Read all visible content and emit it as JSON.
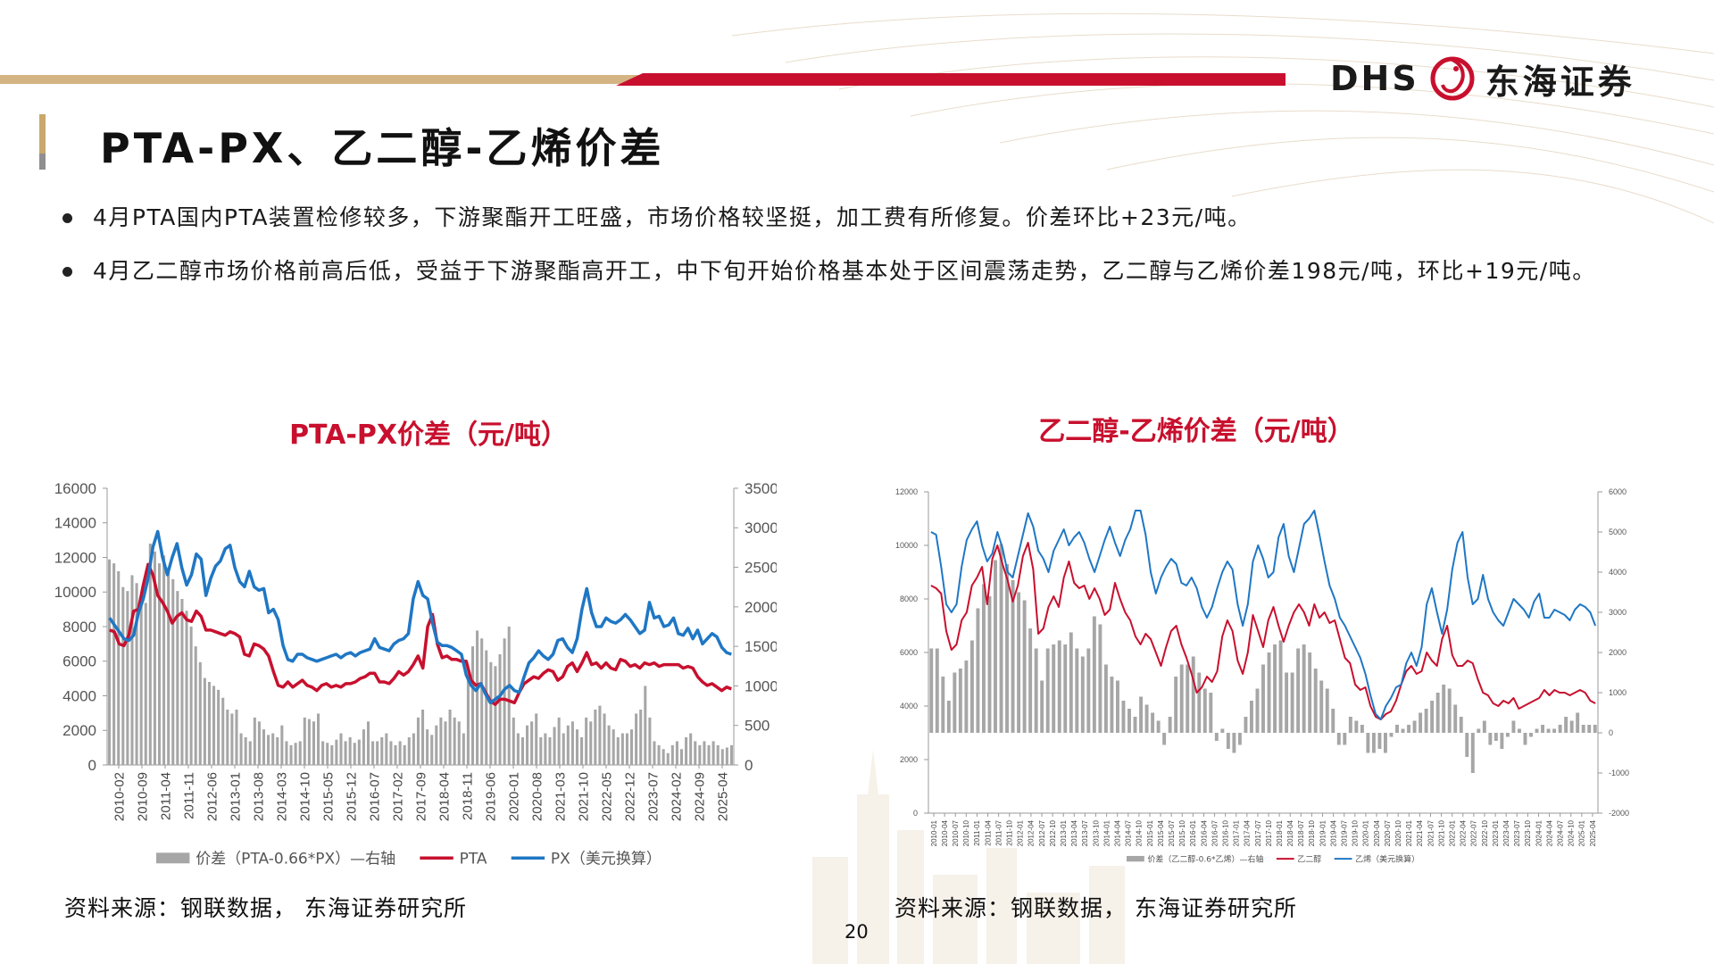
{
  "header": {
    "logo_latin": "DHS",
    "logo_chinese": "东海证券",
    "logo_icon": "dragon-icon",
    "page_title": "PTA-PX、乙二醇-乙烯价差"
  },
  "bullets": [
    "4月PTA国内PTA装置检修较多，下游聚酯开工旺盛，市场价格较坚挺，加工费有所修复。价差环比+23元/吨。",
    "4月乙二醇市场价格前高后低，受益于下游聚酯高开工，中下旬开始价格基本处于区间震荡走势，乙二醇与乙烯价差198元/吨，环比+19元/吨。"
  ],
  "colors": {
    "accent_red": "#c8102e",
    "accent_blue": "#1f77c4",
    "bar_gray": "#a6a6a6",
    "gold": "#d4b483"
  },
  "footer": {
    "source_left": "资料来源：钢联数据， 东海证券研究所",
    "source_right": "资料来源：钢联数据， 东海证券研究所",
    "page_number": "20"
  },
  "chart_data": [
    {
      "type": "line",
      "title": "PTA-PX价差（元/吨）",
      "x_ticks": [
        "2010-02",
        "2010-09",
        "2011-04",
        "2011-11",
        "2012-06",
        "2013-01",
        "2013-08",
        "2014-03",
        "2014-10",
        "2015-05",
        "2015-12",
        "2016-07",
        "2017-02",
        "2017-09",
        "2018-04",
        "2018-11",
        "2019-06",
        "2020-01",
        "2020-08",
        "2021-03",
        "2021-10",
        "2022-05",
        "2022-12",
        "2023-07",
        "2024-02",
        "2024-09",
        "2025-04"
      ],
      "y_left": {
        "min": 0,
        "max": 16000,
        "ticks": [
          "0",
          "2000",
          "4000",
          "6000",
          "8000",
          "10000",
          "12000",
          "14000",
          "16000"
        ]
      },
      "y_right": {
        "min": 0,
        "max": 3500,
        "ticks": [
          "0",
          "500",
          "1000",
          "1500",
          "2000",
          "2500",
          "3000",
          "3500"
        ]
      },
      "legend": [
        "价差（PTA-0.66*PX）—右轴",
        "PTA",
        "PX（美元换算）"
      ],
      "series": [
        {
          "name": "价差（PTA-0.66*PX）—右轴",
          "axis": "right",
          "kind": "bar",
          "values": [
            2600,
            2550,
            2450,
            2250,
            2200,
            2400,
            2300,
            2100,
            2050,
            2800,
            2700,
            2550,
            2650,
            2500,
            2350,
            2200,
            2100,
            1950,
            1750,
            1500,
            1300,
            1100,
            1050,
            1000,
            950,
            850,
            700,
            650,
            700,
            400,
            350,
            300,
            600,
            550,
            450,
            380,
            400,
            350,
            500,
            300,
            250,
            280,
            300,
            600,
            580,
            550,
            650,
            300,
            280,
            250,
            320,
            400,
            300,
            350,
            280,
            320,
            450,
            550,
            300,
            300,
            350,
            400,
            300,
            250,
            300,
            250,
            350,
            400,
            600,
            700,
            450,
            380,
            500,
            600,
            550,
            700,
            600,
            550,
            400,
            1100,
            1500,
            1700,
            1600,
            1450,
            1300,
            1250,
            1400,
            1600,
            1750,
            600,
            400,
            350,
            500,
            550,
            650,
            350,
            400,
            350,
            480,
            600,
            400,
            500,
            550,
            450,
            350,
            600,
            550,
            700,
            750,
            650,
            500,
            450,
            350,
            400,
            400,
            450,
            650,
            700,
            1000,
            600,
            300,
            250,
            200,
            150,
            250,
            300,
            200,
            350,
            400,
            300,
            250,
            300,
            250,
            300,
            250,
            200,
            220,
            250
          ]
        },
        {
          "name": "PTA",
          "axis": "left",
          "kind": "line",
          "values": [
            7800,
            7700,
            7000,
            6900,
            7500,
            8900,
            9000,
            10400,
            11600,
            11000,
            9800,
            9400,
            8900,
            8200,
            8600,
            8800,
            8400,
            8300,
            8900,
            8600,
            7800,
            7800,
            7700,
            7600,
            7500,
            7700,
            7600,
            7400,
            6400,
            6300,
            7000,
            6900,
            6700,
            6300,
            5400,
            4600,
            4500,
            4800,
            4500,
            4700,
            4900,
            4600,
            4500,
            4300,
            4600,
            4700,
            4500,
            4600,
            4500,
            4700,
            4700,
            4800,
            5000,
            5100,
            5300,
            5300,
            4800,
            4800,
            4700,
            5000,
            5400,
            5200,
            5400,
            5800,
            6300,
            5600,
            8000,
            8700,
            7000,
            6200,
            6300,
            6100,
            6100,
            6000,
            6000,
            4900,
            4600,
            4700,
            4200,
            3700,
            3500,
            3800,
            3800,
            3700,
            3600,
            4200,
            4700,
            4900,
            5100,
            5000,
            5300,
            5500,
            5400,
            4900,
            5100,
            5700,
            5900,
            5400,
            5900,
            6500,
            5800,
            5900,
            5600,
            5900,
            5600,
            5500,
            6100,
            6000,
            5700,
            5800,
            5600,
            5900,
            5800,
            5900,
            5700,
            5800,
            5800,
            5800,
            5800,
            5600,
            5700,
            5600,
            5100,
            4800,
            4600,
            4700,
            4500,
            4300,
            4500,
            4400
          ]
        },
        {
          "name": "PX（美元换算）",
          "axis": "left",
          "kind": "line",
          "values": [
            8500,
            8100,
            7700,
            7300,
            7200,
            7500,
            8800,
            9600,
            10800,
            12600,
            13500,
            12000,
            11000,
            12000,
            12800,
            11400,
            10400,
            11000,
            12200,
            11900,
            9800,
            10800,
            11500,
            11800,
            12500,
            12700,
            11400,
            10600,
            10300,
            11200,
            10300,
            10100,
            10200,
            8800,
            9000,
            8400,
            6900,
            6100,
            6000,
            6400,
            6400,
            6200,
            6100,
            6000,
            6100,
            6200,
            6300,
            6400,
            6200,
            6400,
            6500,
            6300,
            6500,
            6600,
            6700,
            7300,
            6800,
            6700,
            6600,
            7000,
            7200,
            7300,
            7600,
            9600,
            10600,
            9800,
            9600,
            8200,
            7100,
            6900,
            6900,
            6800,
            6600,
            6400,
            5200,
            4600,
            4300,
            4700,
            4100,
            3600,
            3800,
            4000,
            4400,
            4600,
            4300,
            4200,
            5100,
            5900,
            6200,
            6600,
            6300,
            6100,
            6400,
            7200,
            7300,
            6800,
            6500,
            7300,
            9000,
            10200,
            8800,
            8000,
            8000,
            8500,
            8300,
            8200,
            8400,
            8700,
            8400,
            8000,
            7600,
            7800,
            9400,
            8500,
            8600,
            8000,
            8100,
            8500,
            7600,
            7500,
            7900,
            7300,
            7800,
            7000,
            7300,
            7600,
            7400,
            6800,
            6500,
            6400
          ]
        }
      ]
    },
    {
      "type": "line",
      "title": "乙二醇-乙烯价差（元/吨）",
      "x_ticks": [
        "2010-01",
        "2010-04",
        "2010-07",
        "2010-10",
        "2011-01",
        "2011-04",
        "2011-07",
        "2011-10",
        "2012-01",
        "2012-04",
        "2012-07",
        "2012-10",
        "2013-01",
        "2013-04",
        "2013-07",
        "2013-10",
        "2014-01",
        "2014-04",
        "2014-07",
        "2014-10",
        "2015-01",
        "2015-04",
        "2015-07",
        "2015-10",
        "2016-01",
        "2016-04",
        "2016-07",
        "2016-10",
        "2017-01",
        "2017-04",
        "2017-07",
        "2017-10",
        "2018-01",
        "2018-04",
        "2018-07",
        "2018-10",
        "2019-01",
        "2019-04",
        "2019-07",
        "2019-10",
        "2020-01",
        "2020-04",
        "2020-07",
        "2020-10",
        "2021-01",
        "2021-04",
        "2021-07",
        "2021-10",
        "2022-01",
        "2022-04",
        "2022-07",
        "2022-10",
        "2023-01",
        "2023-04",
        "2023-07",
        "2023-10",
        "2024-01",
        "2024-04",
        "2024-07",
        "2024-10",
        "2025-01",
        "2025-04"
      ],
      "y_left": {
        "min": 0,
        "max": 12000,
        "ticks": [
          "0",
          "2000",
          "4000",
          "6000",
          "8000",
          "10000",
          "12000"
        ]
      },
      "y_right": {
        "min": -2000,
        "max": 6000,
        "ticks": [
          "-2000",
          "-1000",
          "0",
          "1000",
          "2000",
          "3000",
          "4000",
          "5000",
          "6000"
        ]
      },
      "legend": [
        "价差（乙二醇-0.6*乙烯）—右轴",
        "乙二醇",
        "乙烯（美元换算）"
      ],
      "series": [
        {
          "name": "价差（乙二醇-0.6*乙烯）—右轴",
          "axis": "right",
          "kind": "bar",
          "values": [
            2100,
            2100,
            1400,
            800,
            1500,
            1600,
            1800,
            2300,
            3100,
            3700,
            3400,
            4300,
            4700,
            4200,
            3800,
            3500,
            3300,
            2600,
            2100,
            1300,
            2100,
            2200,
            2300,
            2200,
            2500,
            2100,
            1900,
            2100,
            2900,
            2700,
            1700,
            1400,
            1300,
            800,
            600,
            400,
            900,
            700,
            500,
            300,
            -300,
            400,
            1400,
            1700,
            1700,
            1900,
            1500,
            1100,
            1000,
            -200,
            100,
            -400,
            -500,
            -300,
            400,
            800,
            1100,
            1700,
            2000,
            2200,
            2300,
            1500,
            1500,
            2100,
            2200,
            2000,
            1600,
            1300,
            1100,
            600,
            -300,
            -300,
            400,
            300,
            200,
            -500,
            -500,
            -400,
            -500,
            -100,
            200,
            100,
            200,
            300,
            500,
            600,
            800,
            1000,
            1200,
            1100,
            700,
            400,
            -600,
            -1000,
            100,
            300,
            -300,
            -200,
            -400,
            -100,
            300,
            100,
            -300,
            -100,
            100,
            200,
            100,
            100,
            200,
            400,
            300,
            500,
            200,
            200,
            200
          ]
        },
        {
          "name": "乙二醇",
          "axis": "left",
          "kind": "line",
          "values": [
            8500,
            8400,
            8200,
            6800,
            6100,
            6300,
            7200,
            7500,
            8500,
            8800,
            9200,
            7800,
            9500,
            10000,
            9300,
            8700,
            7900,
            8500,
            9600,
            10100,
            9100,
            6700,
            6900,
            7700,
            8100,
            7700,
            8800,
            9400,
            8600,
            8400,
            8500,
            8000,
            8400,
            8000,
            7400,
            7600,
            8600,
            8000,
            7500,
            7200,
            6600,
            6300,
            6700,
            6500,
            6000,
            5500,
            6200,
            6800,
            7000,
            6300,
            5800,
            5200,
            4500,
            4700,
            5100,
            4900,
            5300,
            6600,
            7200,
            6800,
            5700,
            5200,
            6000,
            7400,
            6800,
            6200,
            7200,
            7700,
            7000,
            6400,
            7000,
            7500,
            7800,
            7500,
            7000,
            7800,
            7300,
            7500,
            7100,
            7200,
            6500,
            5800,
            5600,
            4800,
            4600,
            4700,
            4000,
            3600,
            3500,
            3700,
            3800,
            4200,
            4800,
            5300,
            5500,
            5200,
            5300,
            6000,
            5700,
            5500,
            6500,
            7000,
            5900,
            5500,
            5500,
            5700,
            5600,
            5000,
            4500,
            4400,
            4100,
            4000,
            4200,
            4100,
            4300,
            3900,
            4000,
            4100,
            4200,
            4300,
            4600,
            4400,
            4600,
            4500,
            4500,
            4400,
            4500,
            4600,
            4500,
            4200,
            4100
          ]
        },
        {
          "name": "乙烯（美元换算）",
          "axis": "left",
          "kind": "line",
          "values": [
            10500,
            10400,
            9200,
            7800,
            7500,
            7800,
            9200,
            10200,
            10600,
            10900,
            10000,
            9400,
            9700,
            10500,
            9900,
            9000,
            8800,
            9600,
            10400,
            11200,
            10700,
            9800,
            9500,
            9000,
            9800,
            10200,
            10600,
            10000,
            10300,
            10500,
            10100,
            9500,
            9000,
            9600,
            10200,
            10700,
            10100,
            9600,
            10200,
            10600,
            11300,
            11300,
            10400,
            9000,
            8200,
            8800,
            9200,
            9500,
            9300,
            8600,
            8500,
            8800,
            8400,
            7700,
            7300,
            7700,
            8400,
            9000,
            9400,
            9100,
            7800,
            7000,
            7800,
            9400,
            10000,
            9500,
            8800,
            9000,
            10300,
            10800,
            9600,
            9000,
            9900,
            10800,
            11000,
            11300,
            10400,
            9400,
            8500,
            8000,
            7300,
            7000,
            6600,
            6200,
            5800,
            5200,
            4400,
            3700,
            3500,
            4000,
            4300,
            4700,
            4800,
            5600,
            6000,
            5500,
            6200,
            7800,
            8400,
            7500,
            6700,
            7600,
            9100,
            10100,
            10500,
            8800,
            7800,
            8000,
            8900,
            8000,
            7500,
            7200,
            7000,
            7500,
            8000,
            7800,
            7600,
            7300,
            7900,
            8200,
            7300,
            7300,
            7600,
            7500,
            7400,
            7200,
            7600,
            7800,
            7700,
            7500,
            7000
          ]
        }
      ]
    }
  ]
}
